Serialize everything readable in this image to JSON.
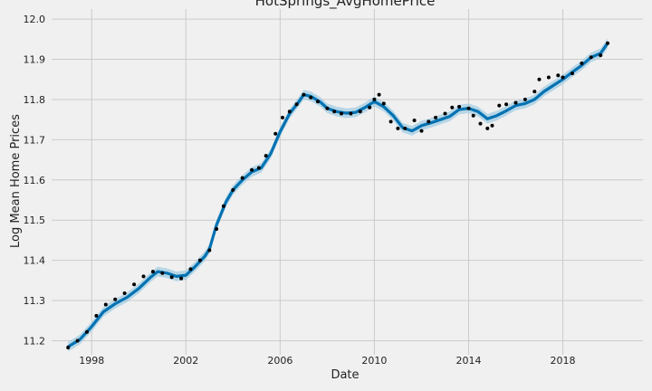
{
  "chart_data": {
    "type": "line",
    "title": "HotSprings_AvgHomePrice",
    "xlabel": "Date",
    "ylabel": "Log Mean Home Prices",
    "xlim": [
      1996.3,
      2021.4
    ],
    "ylim": [
      11.165,
      12.025
    ],
    "grid": true,
    "x_ticks": [
      {
        "value": 1998,
        "label": "1998"
      },
      {
        "value": 2002,
        "label": "2002"
      },
      {
        "value": 2006,
        "label": "2006"
      },
      {
        "value": 2010,
        "label": "2010"
      },
      {
        "value": 2014,
        "label": "2014"
      },
      {
        "value": 2018,
        "label": "2018"
      }
    ],
    "y_ticks": [
      {
        "value": 11.2,
        "label": "11.2"
      },
      {
        "value": 11.3,
        "label": "11.3"
      },
      {
        "value": 11.4,
        "label": "11.4"
      },
      {
        "value": 11.5,
        "label": "11.5"
      },
      {
        "value": 11.6,
        "label": "11.6"
      },
      {
        "value": 11.7,
        "label": "11.7"
      },
      {
        "value": 11.8,
        "label": "11.8"
      },
      {
        "value": 11.9,
        "label": "11.9"
      },
      {
        "value": 12.0,
        "label": "12.0"
      }
    ],
    "series": [
      {
        "role": "forecast",
        "color": "#0072b2",
        "x": [
          1997.0,
          1997.5,
          1998.0,
          1998.5,
          1999.0,
          1999.5,
          2000.0,
          2000.5,
          2000.8,
          2001.2,
          2001.6,
          2002.0,
          2002.4,
          2002.8,
          2003.0,
          2003.3,
          2003.7,
          2004.0,
          2004.4,
          2004.8,
          2005.2,
          2005.6,
          2006.0,
          2006.4,
          2006.8,
          2007.0,
          2007.3,
          2007.7,
          2008.0,
          2008.4,
          2008.8,
          2009.2,
          2009.6,
          2010.0,
          2010.4,
          2010.8,
          2011.2,
          2011.6,
          2012.0,
          2012.4,
          2012.8,
          2013.2,
          2013.6,
          2014.0,
          2014.4,
          2014.8,
          2015.2,
          2015.6,
          2016.0,
          2016.4,
          2016.8,
          2017.2,
          2017.6,
          2018.0,
          2018.4,
          2018.8,
          2019.2,
          2019.6,
          2019.9
        ],
        "y": [
          11.185,
          11.203,
          11.235,
          11.272,
          11.292,
          11.308,
          11.33,
          11.358,
          11.372,
          11.368,
          11.36,
          11.363,
          11.385,
          11.41,
          11.428,
          11.488,
          11.545,
          11.575,
          11.6,
          11.62,
          11.63,
          11.665,
          11.72,
          11.765,
          11.795,
          11.812,
          11.808,
          11.794,
          11.778,
          11.77,
          11.766,
          11.768,
          11.78,
          11.795,
          11.782,
          11.76,
          11.73,
          11.722,
          11.735,
          11.742,
          11.75,
          11.758,
          11.775,
          11.778,
          11.77,
          11.752,
          11.76,
          11.772,
          11.785,
          11.79,
          11.8,
          11.82,
          11.835,
          11.85,
          11.868,
          11.885,
          11.905,
          11.915,
          11.94
        ]
      },
      {
        "role": "observed",
        "color": "#000000",
        "x": [
          1997.0,
          1997.4,
          1997.8,
          1998.2,
          1998.6,
          1999.0,
          1999.4,
          1999.8,
          2000.2,
          2000.6,
          2001.0,
          2001.4,
          2001.8,
          2002.2,
          2002.6,
          2003.0,
          2003.3,
          2003.6,
          2004.0,
          2004.4,
          2004.8,
          2005.1,
          2005.4,
          2005.8,
          2006.1,
          2006.4,
          2006.7,
          2007.0,
          2007.3,
          2007.6,
          2008.0,
          2008.3,
          2008.6,
          2009.0,
          2009.4,
          2009.8,
          2010.0,
          2010.2,
          2010.4,
          2010.7,
          2011.0,
          2011.3,
          2011.7,
          2012.0,
          2012.3,
          2012.6,
          2013.0,
          2013.3,
          2013.6,
          2014.0,
          2014.2,
          2014.5,
          2014.8,
          2015.0,
          2015.3,
          2015.6,
          2016.0,
          2016.4,
          2016.8,
          2017.0,
          2017.4,
          2017.8,
          2018.0,
          2018.4,
          2018.8,
          2019.2,
          2019.6,
          2019.9
        ],
        "y": [
          11.183,
          11.2,
          11.222,
          11.262,
          11.29,
          11.303,
          11.318,
          11.34,
          11.36,
          11.372,
          11.368,
          11.358,
          11.355,
          11.378,
          11.4,
          11.425,
          11.478,
          11.535,
          11.575,
          11.605,
          11.625,
          11.63,
          11.66,
          11.715,
          11.755,
          11.77,
          11.788,
          11.812,
          11.805,
          11.795,
          11.778,
          11.77,
          11.765,
          11.765,
          11.77,
          11.78,
          11.8,
          11.812,
          11.79,
          11.745,
          11.728,
          11.728,
          11.748,
          11.722,
          11.745,
          11.755,
          11.765,
          11.78,
          11.782,
          11.778,
          11.76,
          11.74,
          11.728,
          11.735,
          11.785,
          11.788,
          11.792,
          11.8,
          11.82,
          11.85,
          11.855,
          11.86,
          11.855,
          11.865,
          11.89,
          11.905,
          11.91,
          11.94
        ]
      }
    ],
    "band_halfwidth": 0.012,
    "colors": {
      "background": "#f0f0f0",
      "grid": "#cbcbcb",
      "band": "#9ecae1"
    }
  }
}
